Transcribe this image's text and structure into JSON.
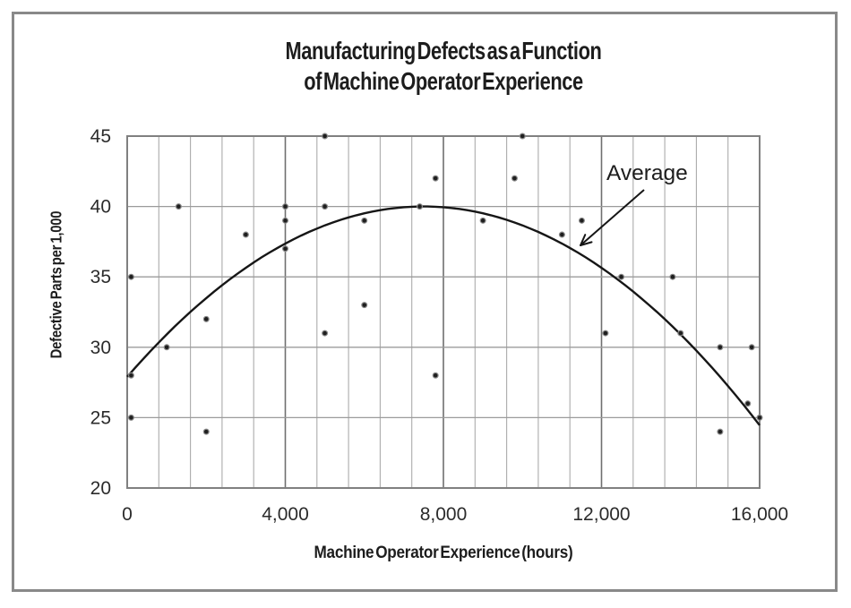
{
  "figure": {
    "title_line1": "Manufacturing Defects as a Function",
    "title_line2": "of Machine Operator Experience"
  },
  "chart_data": {
    "type": "scatter",
    "title": "Manufacturing Defects as a Function of Machine Operator Experience",
    "xlabel": "Machine Operator Experience (hours)",
    "ylabel": "Defective Parts per 1,000",
    "xlim": [
      0,
      16000
    ],
    "ylim": [
      20,
      45
    ],
    "grid": "on",
    "x_tick_values": [
      0,
      4000,
      8000,
      12000,
      16000
    ],
    "x_tick_labels": [
      "0",
      "4,000",
      "8,000",
      "12,000",
      "16,000"
    ],
    "x_minor_gridline_step": 800,
    "x_major_gridline_step": 4000,
    "y_tick_values": [
      20,
      25,
      30,
      35,
      40,
      45
    ],
    "y_tick_labels": [
      "20",
      "25",
      "30",
      "35",
      "40",
      "45"
    ],
    "y_gridline_step": 5,
    "points": [
      [
        100,
        35
      ],
      [
        100,
        28
      ],
      [
        100,
        25
      ],
      [
        1000,
        30
      ],
      [
        1300,
        40
      ],
      [
        2000,
        32
      ],
      [
        2000,
        24
      ],
      [
        3000,
        38
      ],
      [
        4000,
        40
      ],
      [
        4000,
        39
      ],
      [
        4000,
        37
      ],
      [
        5000,
        45
      ],
      [
        5000,
        40
      ],
      [
        5000,
        31
      ],
      [
        6000,
        39
      ],
      [
        6000,
        33
      ],
      [
        7400,
        40
      ],
      [
        7800,
        42
      ],
      [
        7800,
        28
      ],
      [
        9000,
        39
      ],
      [
        9800,
        42
      ],
      [
        10000,
        45
      ],
      [
        11000,
        38
      ],
      [
        11500,
        39
      ],
      [
        12100,
        31
      ],
      [
        12500,
        35
      ],
      [
        13800,
        35
      ],
      [
        14000,
        31
      ],
      [
        15000,
        30
      ],
      [
        15000,
        24
      ],
      [
        15700,
        26
      ],
      [
        15800,
        30
      ],
      [
        16000,
        25
      ]
    ],
    "trend_curve": {
      "label": "Average",
      "shape": "parabola",
      "vertex": [
        7500,
        40
      ],
      "y_at_x_min": 27.9,
      "y_at_x_max": 24.5
    }
  },
  "colors": {
    "ink": "#1d1d1d",
    "curve": "#161616",
    "dot_fill": "#1f1f1f",
    "dot_ring": "#8a8a8a",
    "grid_minor": "#ababab",
    "grid_major": "#6f6f6f",
    "grid_horizontal": "#9b9b9b",
    "plot_border": "#808080",
    "frame_border": "#898989",
    "tick_text": "#2b2b2b"
  }
}
